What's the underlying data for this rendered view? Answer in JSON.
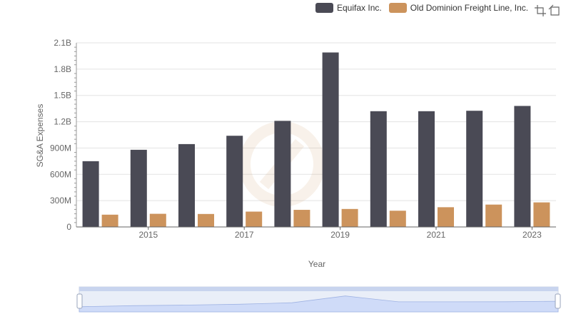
{
  "legend": {
    "items": [
      {
        "label": "Equifax Inc.",
        "color": "#4a4a55"
      },
      {
        "label": "Old Dominion Freight Line, Inc.",
        "color": "#cc935c"
      }
    ]
  },
  "toolbox": {
    "icons": [
      "zoom-icon",
      "restore-icon"
    ]
  },
  "chart_data": {
    "type": "bar",
    "categories": [
      "2014",
      "2015",
      "2016",
      "2017",
      "2018",
      "2019",
      "2020",
      "2021",
      "2022",
      "2023"
    ],
    "x_tick_labels": [
      "2015",
      "2017",
      "2019",
      "2021",
      "2023"
    ],
    "series": [
      {
        "name": "Equifax Inc.",
        "color": "#4a4a55",
        "values": [
          750000000,
          880000000,
          945000000,
          1040000000,
          1210000000,
          1990000000,
          1320000000,
          1320000000,
          1325000000,
          1380000000
        ]
      },
      {
        "name": "Old Dominion Freight Line, Inc.",
        "color": "#cc935c",
        "values": [
          140000000,
          150000000,
          148000000,
          175000000,
          195000000,
          205000000,
          185000000,
          225000000,
          255000000,
          280000000
        ]
      }
    ],
    "xlabel": "Year",
    "ylabel": "SG&A Expenses",
    "ylim": [
      0,
      2100000000
    ],
    "y_ticks": [
      0,
      300000000,
      600000000,
      900000000,
      1200000000,
      1500000000,
      1800000000,
      2100000000
    ],
    "y_tick_labels": [
      "0",
      "300M",
      "600M",
      "900M",
      "1.2B",
      "1.5B",
      "1.8B",
      "2.1B"
    ],
    "grid": true,
    "legend_position": "top-right"
  }
}
